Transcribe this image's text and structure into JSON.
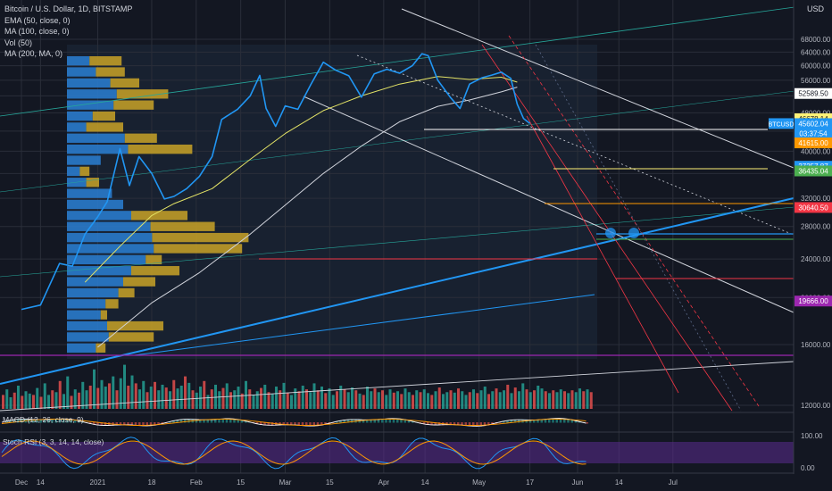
{
  "legend": {
    "title": "Bitcoin / U.S. Dollar, 1D, BITSTAMP",
    "ema": "EMA (50, close, 0)",
    "ma100": "MA (100, close, 0)",
    "vol": "Vol (50)",
    "ma200": "MA (200, MA, 0)"
  },
  "currency_label": "USD",
  "macd_label": "MACD (12, 26, close, 9)",
  "stoch_label": "Stoch RSI (3, 3, 14, 14, close)",
  "colors": {
    "background": "#131722",
    "price_line": "#2196f3",
    "ema": "#e4e466",
    "ma100": "#d1d4dc",
    "volume_up": "#26a69a",
    "volume_down": "#ef5350",
    "vp_up": "#2a7fd4",
    "vp_down": "#c9a227",
    "stoch_band": "#5b2c8f"
  },
  "chart_data": {
    "type": "line",
    "symbol": "BTCUSD",
    "y_scale": "log",
    "ylim": [
      11000,
      73000
    ],
    "x_tick_labels": [
      "Dec",
      "14",
      "2021",
      "18",
      "Feb",
      "15",
      "Mar",
      "15",
      "Apr",
      "14",
      "May",
      "17",
      "Jun",
      "14",
      "Jul"
    ],
    "y_tick_labels": [
      "12000.00",
      "16000.00",
      "20000.00",
      "24000.00",
      "28000.00",
      "32000.00",
      "36000.00",
      "40000.00",
      "44000.00",
      "48000.00",
      "52000.00",
      "56000.00",
      "60000.00",
      "64000.00",
      "68000.00"
    ],
    "price_series": {
      "name": "BTCUSD",
      "x": [
        "2020-12-08",
        "2020-12-14",
        "2020-12-20",
        "2020-12-24",
        "2020-12-28",
        "2021-01-01",
        "2021-01-04",
        "2021-01-08",
        "2021-01-11",
        "2021-01-14",
        "2021-01-18",
        "2021-01-22",
        "2021-01-25",
        "2021-01-29",
        "2021-02-02",
        "2021-02-06",
        "2021-02-09",
        "2021-02-14",
        "2021-02-18",
        "2021-02-21",
        "2021-02-23",
        "2021-02-26",
        "2021-03-01",
        "2021-03-05",
        "2021-03-09",
        "2021-03-13",
        "2021-03-17",
        "2021-03-21",
        "2021-03-25",
        "2021-03-29",
        "2021-04-02",
        "2021-04-06",
        "2021-04-10",
        "2021-04-13",
        "2021-04-15",
        "2021-04-18",
        "2021-04-22",
        "2021-04-25",
        "2021-04-28",
        "2021-05-02",
        "2021-05-05",
        "2021-05-08",
        "2021-05-11",
        "2021-05-13",
        "2021-05-15",
        "2021-05-17"
      ],
      "y": [
        18900,
        19300,
        23500,
        23200,
        27000,
        29300,
        31500,
        40500,
        34000,
        39000,
        36000,
        31900,
        32300,
        33500,
        35500,
        39000,
        46500,
        48800,
        52000,
        57300,
        49000,
        45000,
        49600,
        48800,
        54800,
        61000,
        58700,
        57200,
        51700,
        57700,
        59000,
        57900,
        60000,
        63500,
        62900,
        56000,
        51600,
        49000,
        55000,
        56700,
        57400,
        58200,
        56500,
        50000,
        46700,
        45602
      ]
    },
    "ema_series": {
      "name": "EMA (50, close, 0)",
      "x": [
        "2020-12-28",
        "2021-01-08",
        "2021-01-18",
        "2021-01-25",
        "2021-02-06",
        "2021-02-18",
        "2021-03-01",
        "2021-03-13",
        "2021-03-25",
        "2021-04-06",
        "2021-04-18",
        "2021-04-28",
        "2021-05-08",
        "2021-05-13"
      ],
      "y": [
        21500,
        25500,
        29500,
        31200,
        33500,
        38500,
        43500,
        48500,
        52000,
        55000,
        57000,
        56200,
        56800,
        55500
      ]
    },
    "ma100_series": {
      "name": "MA (100, close, 0)",
      "x": [
        "2021-01-01",
        "2021-01-18",
        "2021-02-02",
        "2021-02-18",
        "2021-03-01",
        "2021-03-13",
        "2021-03-25",
        "2021-04-06",
        "2021-04-18",
        "2021-04-28",
        "2021-05-08",
        "2021-05-13"
      ],
      "y": [
        15800,
        19500,
        22500,
        27000,
        31000,
        36000,
        41000,
        46000,
        49500,
        51000,
        53000,
        54200
      ]
    },
    "price_labels": [
      {
        "label": "52589.50",
        "value": 52589.5,
        "color": "#ffffff"
      },
      {
        "label": "46678.14",
        "value": 46678.14,
        "color": "#fff176"
      },
      {
        "label": "BTCUSD",
        "value": 45602.04,
        "color": "#2196f3"
      },
      {
        "label": "45602.04",
        "value": 45602.04,
        "color": "#2196f3"
      },
      {
        "label": "03:37:54",
        "value": 44800,
        "color": "#2196f3"
      },
      {
        "label": "41615.00",
        "value": 41615.0,
        "color": "#ff9800"
      },
      {
        "label": "37257.87",
        "value": 37257.87,
        "color": "#2196f3"
      },
      {
        "label": "36435.04",
        "value": 36435.04,
        "color": "#4caf50"
      },
      {
        "label": "30640.50",
        "value": 30640.5,
        "color": "#f23645"
      },
      {
        "label": "19666.00",
        "value": 19666.0,
        "color": "#9c27b0"
      }
    ],
    "volume_profile": {
      "rows": [
        {
          "buy": 0.14,
          "sell": 0.2
        },
        {
          "buy": 0.18,
          "sell": 0.18
        },
        {
          "buy": 0.27,
          "sell": 0.18
        },
        {
          "buy": 0.31,
          "sell": 0.32
        },
        {
          "buy": 0.29,
          "sell": 0.25
        },
        {
          "buy": 0.16,
          "sell": 0.14
        },
        {
          "buy": 0.12,
          "sell": 0.23
        },
        {
          "buy": 0.36,
          "sell": 0.2
        },
        {
          "buy": 0.38,
          "sell": 0.4
        },
        {
          "buy": 0.21,
          "sell": 0.0
        },
        {
          "buy": 0.08,
          "sell": 0.06
        },
        {
          "buy": 0.12,
          "sell": 0.08
        },
        {
          "buy": 0.28,
          "sell": 0.0
        },
        {
          "buy": 0.35,
          "sell": 0.0
        },
        {
          "buy": 0.4,
          "sell": 0.35
        },
        {
          "buy": 0.52,
          "sell": 0.4
        },
        {
          "buy": 0.53,
          "sell": 0.6
        },
        {
          "buy": 0.54,
          "sell": 0.55
        },
        {
          "buy": 0.49,
          "sell": 0.1
        },
        {
          "buy": 0.4,
          "sell": 0.3
        },
        {
          "buy": 0.35,
          "sell": 0.2
        },
        {
          "buy": 0.32,
          "sell": 0.1
        },
        {
          "buy": 0.24,
          "sell": 0.08
        },
        {
          "buy": 0.21,
          "sell": 0.04
        },
        {
          "buy": 0.25,
          "sell": 0.35
        },
        {
          "buy": 0.26,
          "sell": 0.28
        },
        {
          "buy": 0.18,
          "sell": 0.06
        }
      ]
    },
    "volume": [
      0.3,
      0.42,
      0.25,
      0.35,
      0.5,
      0.28,
      0.38,
      0.33,
      0.3,
      0.45,
      0.26,
      0.55,
      0.3,
      0.4,
      0.36,
      0.6,
      0.32,
      0.7,
      0.28,
      0.42,
      0.35,
      0.58,
      0.4,
      0.5,
      0.85,
      0.45,
      0.62,
      0.48,
      0.55,
      0.7,
      0.4,
      0.66,
      0.95,
      0.5,
      0.72,
      0.55,
      0.42,
      0.6,
      0.36,
      0.48,
      0.58,
      0.4,
      0.52,
      0.46,
      0.38,
      0.62,
      0.44,
      0.5,
      0.7,
      0.56,
      0.4,
      0.35,
      0.48,
      0.6,
      0.3,
      0.42,
      0.52,
      0.38,
      0.45,
      0.55,
      0.36,
      0.4,
      0.48,
      0.33,
      0.6,
      0.42,
      0.3,
      0.38,
      0.45,
      0.52,
      0.36,
      0.32,
      0.48,
      0.4,
      0.56,
      0.35,
      0.3,
      0.44,
      0.38,
      0.5,
      0.42,
      0.36,
      0.55,
      0.4,
      0.48,
      0.34,
      0.44,
      0.3,
      0.38,
      0.5,
      0.42,
      0.36,
      0.46,
      0.4,
      0.33,
      0.3,
      0.48,
      0.38,
      0.44,
      0.36,
      0.4,
      0.3,
      0.42,
      0.35,
      0.38,
      0.32,
      0.44,
      0.36,
      0.3,
      0.4,
      0.36,
      0.42,
      0.34,
      0.3,
      0.38,
      0.46,
      0.32,
      0.36,
      0.4,
      0.35,
      0.44,
      0.38,
      0.3,
      0.36,
      0.42,
      0.34,
      0.4,
      0.48,
      0.32,
      0.38,
      0.44,
      0.36,
      0.4,
      0.52,
      0.34,
      0.46,
      0.38,
      0.55,
      0.42,
      0.36,
      0.4,
      0.5,
      0.44,
      0.38,
      0.34,
      0.4,
      0.36,
      0.42,
      0.38,
      0.34,
      0.4,
      0.36,
      0.44,
      0.38,
      0.42,
      0.36
    ],
    "stoch_rsi_levels": [
      "100.00",
      "0.00"
    ],
    "grid": true
  }
}
